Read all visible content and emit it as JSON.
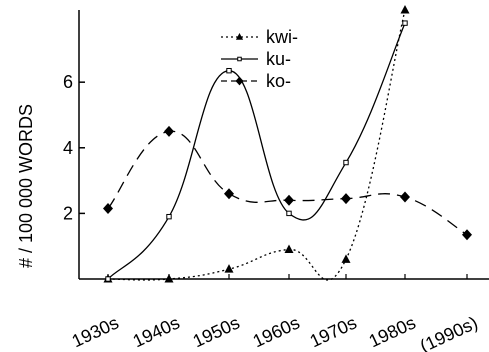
{
  "chart_data": {
    "type": "line",
    "ylabel": "# / 100 000 WORDS",
    "categories": [
      "1930s",
      "1940s",
      "1950s",
      "1960s",
      "1970s",
      "1980s",
      "(1990s)"
    ],
    "yticks": [
      2,
      4,
      6
    ],
    "ylim": [
      0,
      8.2
    ],
    "grid": false,
    "legend_position": "top-center",
    "series": [
      {
        "name": "kwi-",
        "style": "dotted",
        "marker": "triangle",
        "points": [
          {
            "x": "1930s",
            "y": 0
          },
          {
            "x": "1940s",
            "y": 0
          },
          {
            "x": "1950s",
            "y": 0.3
          },
          {
            "x": "1960s",
            "y": 0.9
          },
          {
            "x": "1970s",
            "y": 0.6
          },
          {
            "x": "1980s",
            "y": 8.2
          }
        ]
      },
      {
        "name": "ku-",
        "style": "solid",
        "marker": "square",
        "points": [
          {
            "x": "1930s",
            "y": 0
          },
          {
            "x": "1940s",
            "y": 1.9
          },
          {
            "x": "1950s",
            "y": 6.35
          },
          {
            "x": "1960s",
            "y": 2.0
          },
          {
            "x": "1970s",
            "y": 3.55
          },
          {
            "x": "1980s",
            "y": 7.8
          }
        ]
      },
      {
        "name": "ko-",
        "style": "dashed",
        "marker": "diamond",
        "points": [
          {
            "x": "1930s",
            "y": 2.15
          },
          {
            "x": "1940s",
            "y": 4.5
          },
          {
            "x": "1950s",
            "y": 2.6
          },
          {
            "x": "1960s",
            "y": 2.4
          },
          {
            "x": "1970s",
            "y": 2.45
          },
          {
            "x": "1980s",
            "y": 2.5
          },
          {
            "x": "(1990s)",
            "y": 1.35
          }
        ]
      }
    ]
  }
}
